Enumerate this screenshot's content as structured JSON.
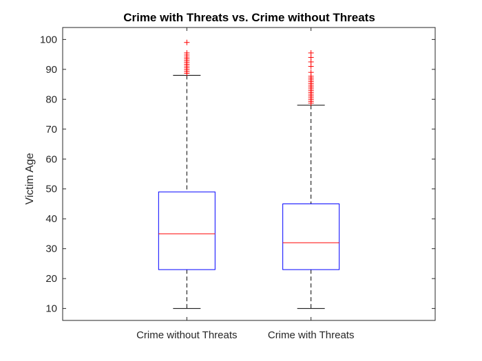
{
  "chart_data": {
    "type": "box",
    "title": "Crime with Threats vs. Crime without Threats",
    "xlabel": "",
    "ylabel": "Victim Age",
    "ylim": [
      6,
      104
    ],
    "yticks": [
      10,
      20,
      30,
      40,
      50,
      60,
      70,
      80,
      90,
      100
    ],
    "categories": [
      "Crime without Threats",
      "Crime with Threats"
    ],
    "boxes": [
      {
        "category": "Crime without Threats",
        "min": 10,
        "q1": 23,
        "median": 35,
        "q3": 49,
        "max": 88,
        "outliers": [
          88.7,
          89.3,
          89.9,
          90.5,
          91.1,
          91.7,
          92.3,
          92.9,
          93.5,
          94.1,
          94.8,
          95.5,
          99
        ]
      },
      {
        "category": "Crime with Threats",
        "min": 10,
        "q1": 23,
        "median": 32,
        "q3": 45,
        "max": 78,
        "outliers": [
          78.7,
          79.3,
          79.9,
          80.5,
          81.1,
          81.7,
          82.3,
          82.9,
          83.5,
          84.1,
          84.7,
          85.3,
          85.9,
          86.5,
          87.1,
          87.7,
          89,
          91,
          92.5,
          94,
          95.5
        ]
      }
    ],
    "colors": {
      "box": "#0000ff",
      "median": "#ff0000",
      "outlier": "#ff0000",
      "whisker": "#000000",
      "axis": "#262626"
    },
    "grid": false
  }
}
